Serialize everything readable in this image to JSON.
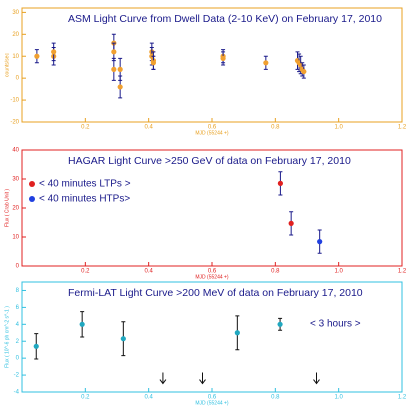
{
  "chart_data": [
    {
      "type": "scatter",
      "title": "ASM Light Curve from Dwell Data (2-10 KeV) on February 17, 2010",
      "xlabel": "MJD (55244 +)",
      "ylabel": "counts/sec",
      "axis_color": "#e8a020",
      "xlim": [
        0,
        1.2
      ],
      "xticks": [
        0.2,
        0.4,
        0.6,
        {
          "value": 1,
          "label": "1.0"
        },
        0.8,
        1.2
      ],
      "ylim": [
        -20,
        32
      ],
      "yticks": [
        -20,
        -10,
        0,
        10,
        20,
        30
      ],
      "series": [
        {
          "color": "#f0a030",
          "error_color": "#1a1a8a",
          "x": [
            0.047,
            0.1,
            0.1,
            0.29,
            0.29,
            0.29,
            0.31,
            0.31,
            0.41,
            0.41,
            0.415,
            0.415,
            0.635,
            0.635,
            0.77,
            0.87,
            0.875,
            0.88,
            0.885,
            0.89
          ],
          "values": [
            10,
            10,
            12,
            16,
            12,
            4,
            4,
            -4,
            12,
            10,
            8,
            7,
            10,
            9,
            7,
            8,
            7,
            6,
            4,
            3
          ],
          "errors": [
            3,
            4,
            4,
            4,
            4,
            5,
            5,
            5,
            4,
            4,
            4,
            3,
            3,
            3,
            3,
            4,
            4,
            4,
            3,
            3
          ]
        }
      ]
    },
    {
      "type": "scatter",
      "title": "HAGAR Light Curve >250 GeV of data on February 17, 2010",
      "xlabel": "MJD (55244 +)",
      "ylabel": "Flux ( Crab Unit )",
      "axis_color": "#e02020",
      "xlim": [
        0,
        1.2
      ],
      "xticks": [
        0.2,
        0.4,
        0.6,
        0.8,
        {
          "value": 1,
          "label": "1.0"
        },
        1.2
      ],
      "ylim": [
        0,
        40
      ],
      "yticks": [
        0,
        10,
        20,
        30,
        40
      ],
      "series": [
        {
          "name": "< 40 minutes LTPs >",
          "color": "#e02020",
          "error_color": "#1a1a8a",
          "x": [
            0.816,
            0.85
          ],
          "values": [
            28.5,
            14.7
          ],
          "errors": [
            4,
            4
          ]
        },
        {
          "name": "< 40 minutes HTPs>",
          "color": "#2040e0",
          "error_color": "#1a1a8a",
          "x": [
            0.94
          ],
          "values": [
            8.4
          ],
          "errors": [
            4
          ]
        }
      ]
    },
    {
      "type": "scatter",
      "title": "Fermi-LAT Light Curve >200 MeV of data on February 17, 2010",
      "xlabel": "MJD (55244 +)",
      "ylabel": "Flux ( 10^-6 ph cm^-2 s^-1 )",
      "axis_color": "#30c0e0",
      "annotation": "< 3 hours >",
      "xlim": [
        0,
        1.2
      ],
      "xticks": [
        0.2,
        0.4,
        0.6,
        0.8,
        {
          "value": 1,
          "label": "1.0"
        },
        1.2
      ],
      "ylim": [
        -4,
        9
      ],
      "yticks": [
        -4,
        -2,
        0,
        2,
        4,
        6,
        8
      ],
      "series": [
        {
          "color": "#20a8c0",
          "error_color": "#111111",
          "x": [
            0.045,
            0.19,
            0.32,
            0.68,
            0.815
          ],
          "values": [
            1.4,
            4,
            2.3,
            3,
            4
          ],
          "errors": [
            1.5,
            1.5,
            2,
            2,
            0.7
          ]
        },
        {
          "upper_limit": true,
          "color": "#111111",
          "x": [
            0.445,
            0.57,
            0.93
          ],
          "values": [
            -1.7,
            -1.7,
            -1.7
          ]
        }
      ]
    }
  ]
}
